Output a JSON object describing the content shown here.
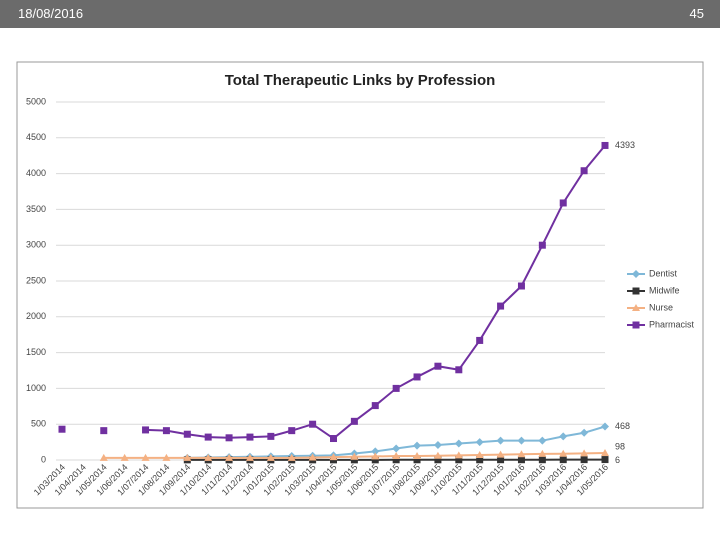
{
  "header": {
    "date": "18/08/2016",
    "page": "45"
  },
  "chart_data": {
    "type": "line",
    "title": "Total Therapeutic Links by Profession",
    "categories": [
      "1/03/2014",
      "1/04/2014",
      "1/05/2014",
      "1/06/2014",
      "1/07/2014",
      "1/08/2014",
      "1/09/2014",
      "1/10/2014",
      "1/11/2014",
      "1/12/2014",
      "1/01/2015",
      "1/02/2015",
      "1/03/2015",
      "1/04/2015",
      "1/05/2015",
      "1/06/2015",
      "1/07/2015",
      "1/08/2015",
      "1/09/2015",
      "1/10/2015",
      "1/11/2015",
      "1/12/2015",
      "1/01/2016",
      "1/02/2016",
      "1/03/2016",
      "1/04/2016",
      "1/05/2016"
    ],
    "series": [
      {
        "name": "Dentist",
        "color": "#7fb8d8",
        "marker": "diamond",
        "values": [
          null,
          null,
          null,
          null,
          null,
          null,
          30,
          35,
          40,
          45,
          50,
          55,
          60,
          65,
          90,
          120,
          160,
          200,
          210,
          230,
          250,
          270,
          270,
          270,
          330,
          380,
          468
        ]
      },
      {
        "name": "Midwife",
        "color": "#333333",
        "marker": "square",
        "values": [
          null,
          null,
          null,
          null,
          null,
          null,
          2,
          2,
          2,
          2,
          2,
          2,
          2,
          2,
          2,
          2,
          3,
          3,
          3,
          3,
          3,
          4,
          4,
          4,
          5,
          5,
          6
        ]
      },
      {
        "name": "Nurse",
        "color": "#f4b183",
        "marker": "triangle",
        "values": [
          null,
          null,
          30,
          30,
          30,
          30,
          30,
          30,
          30,
          30,
          30,
          30,
          35,
          40,
          45,
          50,
          55,
          55,
          60,
          65,
          70,
          75,
          80,
          85,
          88,
          92,
          98
        ]
      },
      {
        "name": "Pharmacist",
        "color": "#7030a0",
        "marker": "square",
        "values": [
          430,
          null,
          410,
          null,
          420,
          410,
          360,
          320,
          310,
          320,
          330,
          410,
          500,
          300,
          540,
          760,
          1000,
          1160,
          1310,
          1260,
          1670,
          2150,
          2430,
          3000,
          3590,
          4040,
          4393
        ]
      }
    ],
    "ylim": [
      0,
      5000
    ],
    "yticks": [
      0,
      500,
      1000,
      1500,
      2000,
      2500,
      3000,
      3500,
      4000,
      4500,
      5000
    ],
    "grid": true,
    "legend": "right"
  }
}
